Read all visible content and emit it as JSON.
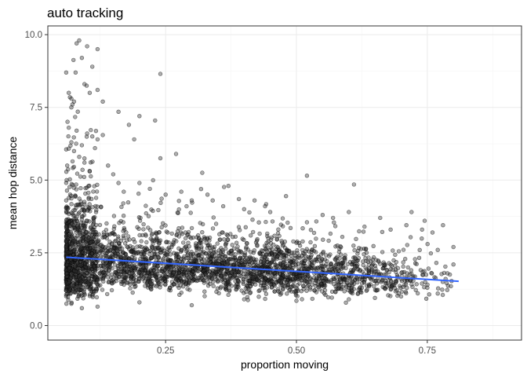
{
  "chart_data": {
    "type": "scatter",
    "title": "auto tracking",
    "xlabel": "proportion moving",
    "ylabel": "mean hop distance",
    "xlim": [
      0.025,
      0.93
    ],
    "ylim": [
      -0.5,
      10.3
    ],
    "x_ticks": [
      0.25,
      0.5,
      0.75
    ],
    "x_tick_labels": [
      "0.25",
      "0.50",
      "0.75"
    ],
    "y_ticks": [
      0.0,
      2.5,
      5.0,
      7.5,
      10.0
    ],
    "y_tick_labels": [
      "0.0",
      "2.5",
      "5.0",
      "7.5",
      "10.0"
    ],
    "grid": true,
    "colors": {
      "points_fill": "#333333",
      "points_stroke": "#000000",
      "trend_line": "#3366ff",
      "grid_major": "#ebebeb",
      "grid_minor": "#f5f5f5",
      "panel_border": "#333333"
    },
    "trend_line": {
      "x": [
        0.06,
        0.81
      ],
      "y": [
        2.35,
        1.52
      ]
    },
    "points": [
      [
        0.06,
        8.7
      ],
      [
        0.065,
        8.0
      ],
      [
        0.07,
        7.8
      ],
      [
        0.072,
        7.6
      ],
      [
        0.075,
        7.7
      ],
      [
        0.08,
        9.7
      ],
      [
        0.085,
        9.8
      ],
      [
        0.09,
        9.2
      ],
      [
        0.1,
        9.6
      ],
      [
        0.11,
        8.9
      ],
      [
        0.12,
        9.5
      ],
      [
        0.095,
        8.3
      ],
      [
        0.078,
        8.7
      ],
      [
        0.07,
        7.5
      ],
      [
        0.105,
        8.0
      ],
      [
        0.12,
        8.1
      ],
      [
        0.13,
        7.7
      ],
      [
        0.24,
        8.65
      ],
      [
        0.2,
        7.2
      ],
      [
        0.23,
        7.05
      ],
      [
        0.16,
        7.35
      ],
      [
        0.18,
        6.9
      ],
      [
        0.19,
        6.4
      ],
      [
        0.27,
        5.9
      ],
      [
        0.24,
        5.75
      ],
      [
        0.52,
        5.15
      ],
      [
        0.61,
        4.85
      ],
      [
        0.48,
        4.45
      ],
      [
        0.37,
        4.8
      ],
      [
        0.32,
        5.25
      ],
      [
        0.065,
        6.8
      ],
      [
        0.07,
        6.3
      ],
      [
        0.08,
        6.7
      ],
      [
        0.09,
        6.2
      ],
      [
        0.1,
        6.6
      ],
      [
        0.11,
        6.5
      ],
      [
        0.115,
        6.1
      ],
      [
        0.12,
        6.4
      ],
      [
        0.13,
        6.55
      ],
      [
        0.14,
        5.5
      ],
      [
        0.075,
        6.0
      ],
      [
        0.085,
        5.8
      ],
      [
        0.095,
        5.6
      ],
      [
        0.105,
        5.3
      ],
      [
        0.15,
        5.2
      ],
      [
        0.16,
        4.9
      ],
      [
        0.17,
        4.6
      ],
      [
        0.2,
        4.9
      ],
      [
        0.22,
        4.7
      ],
      [
        0.25,
        4.5
      ],
      [
        0.28,
        4.6
      ],
      [
        0.3,
        4.3
      ],
      [
        0.34,
        4.3
      ],
      [
        0.36,
        4.1
      ],
      [
        0.4,
        4.0
      ],
      [
        0.42,
        4.3
      ],
      [
        0.45,
        3.9
      ],
      [
        0.55,
        3.8
      ],
      [
        0.6,
        3.9
      ],
      [
        0.72,
        3.9
      ],
      [
        0.745,
        3.6
      ],
      [
        0.78,
        3.45
      ],
      [
        0.8,
        2.7
      ],
      [
        0.77,
        2.6
      ],
      [
        0.76,
        3.2
      ],
      [
        0.785,
        1.6
      ],
      [
        0.8,
        2.1
      ],
      [
        0.75,
        1.3
      ],
      [
        0.77,
        1.1
      ],
      [
        0.66,
        3.7
      ],
      [
        0.07,
        0.75
      ],
      [
        0.09,
        0.6
      ],
      [
        0.12,
        0.65
      ],
      [
        0.2,
        0.8
      ],
      [
        0.3,
        0.7
      ],
      [
        0.4,
        0.9
      ],
      [
        0.5,
        0.85
      ],
      [
        0.6,
        0.9
      ],
      [
        0.7,
        1.0
      ],
      [
        0.65,
        0.95
      ],
      [
        0.06,
        1.2
      ],
      [
        0.06,
        1.9
      ],
      [
        0.06,
        2.7
      ],
      [
        0.06,
        3.4
      ],
      [
        0.06,
        4.3
      ],
      [
        0.061,
        5.0
      ],
      [
        0.062,
        5.5
      ],
      [
        0.063,
        3.0
      ],
      [
        0.064,
        2.2
      ],
      [
        0.066,
        1.5
      ],
      [
        0.33,
        4.5
      ],
      [
        0.29,
        4.1
      ],
      [
        0.44,
        4.1
      ],
      [
        0.39,
        4.35
      ],
      [
        0.52,
        3.55
      ],
      [
        0.57,
        3.7
      ],
      [
        0.63,
        3.4
      ],
      [
        0.68,
        3.3
      ],
      [
        0.71,
        3.45
      ],
      [
        0.74,
        3.3
      ]
    ],
    "scatter_model": {
      "x_range": [
        0.06,
        0.81
      ],
      "center": [
        2.35,
        1.52
      ],
      "spread": 0.62,
      "floor": 0.6,
      "n": 3400
    }
  }
}
